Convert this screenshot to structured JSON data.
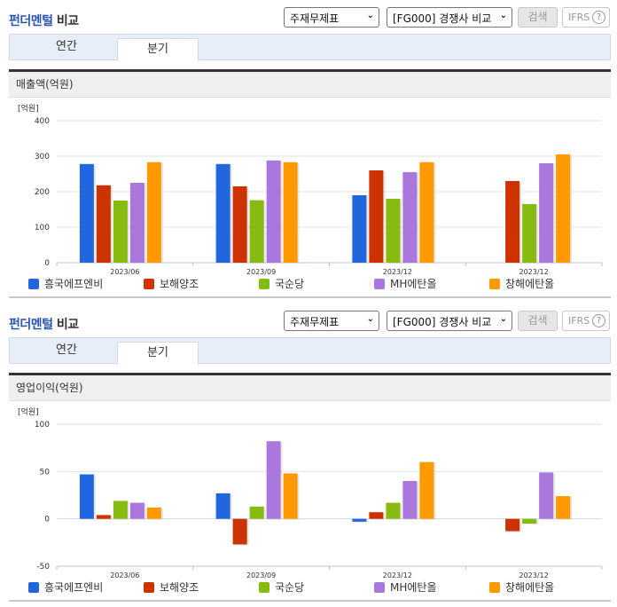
{
  "colors": {
    "series": [
      "#2266dd",
      "#cc3300",
      "#88bb11",
      "#aa77dd",
      "#ff9900"
    ],
    "accent": "#2a56b0"
  },
  "panels": [
    {
      "title_accent": "펀더멘털",
      "title_rest": " 비교",
      "select_report": "주재무제표",
      "select_compare": "[FG000] 경쟁사 비교",
      "search_label": "검색",
      "ifrs_label": "IFRS",
      "help_icon": "?",
      "tabs": [
        {
          "label": "연간",
          "active": false
        },
        {
          "label": "분기",
          "active": true
        }
      ],
      "metric_title": "매출액(억원)",
      "unit_label": "[억원]"
    },
    {
      "title_accent": "펀더멘털",
      "title_rest": " 비교",
      "select_report": "주재무제표",
      "select_compare": "[FG000] 경쟁사 비교",
      "search_label": "검색",
      "ifrs_label": "IFRS",
      "help_icon": "?",
      "tabs": [
        {
          "label": "연간",
          "active": false
        },
        {
          "label": "분기",
          "active": true
        }
      ],
      "metric_title": "영업이익(억원)",
      "unit_label": "[억원]"
    }
  ],
  "chart_data": [
    {
      "type": "bar",
      "title": "매출액(억원)",
      "ylabel": "[억원]",
      "categories": [
        "2023/06",
        "2023/09",
        "2023/12",
        "2023/12"
      ],
      "yticks": [
        0,
        100,
        200,
        300,
        400
      ],
      "ylim": [
        0,
        400
      ],
      "grid": true,
      "legend_position": "bottom",
      "series": [
        {
          "name": "흥국에프엔비",
          "values": [
            278,
            278,
            190,
            null
          ]
        },
        {
          "name": "보해양조",
          "values": [
            218,
            215,
            260,
            230
          ]
        },
        {
          "name": "국순당",
          "values": [
            175,
            176,
            180,
            165
          ]
        },
        {
          "name": "MH에탄올",
          "values": [
            225,
            288,
            255,
            280
          ]
        },
        {
          "name": "창해에탄올",
          "values": [
            283,
            283,
            283,
            305
          ]
        }
      ]
    },
    {
      "type": "bar",
      "title": "영업이익(억원)",
      "ylabel": "[억원]",
      "categories": [
        "2023/06",
        "2023/09",
        "2023/12",
        "2023/12"
      ],
      "yticks": [
        -50,
        0,
        50,
        100
      ],
      "ylim": [
        -50,
        100
      ],
      "grid": true,
      "legend_position": "bottom",
      "series": [
        {
          "name": "흥국에프엔비",
          "values": [
            47,
            27,
            -3,
            null
          ]
        },
        {
          "name": "보해양조",
          "values": [
            4,
            -27,
            7,
            -13
          ]
        },
        {
          "name": "국순당",
          "values": [
            19,
            13,
            17,
            -5
          ]
        },
        {
          "name": "MH에탄올",
          "values": [
            17,
            82,
            40,
            49
          ]
        },
        {
          "name": "창해에탄올",
          "values": [
            12,
            48,
            60,
            24
          ]
        }
      ]
    }
  ]
}
